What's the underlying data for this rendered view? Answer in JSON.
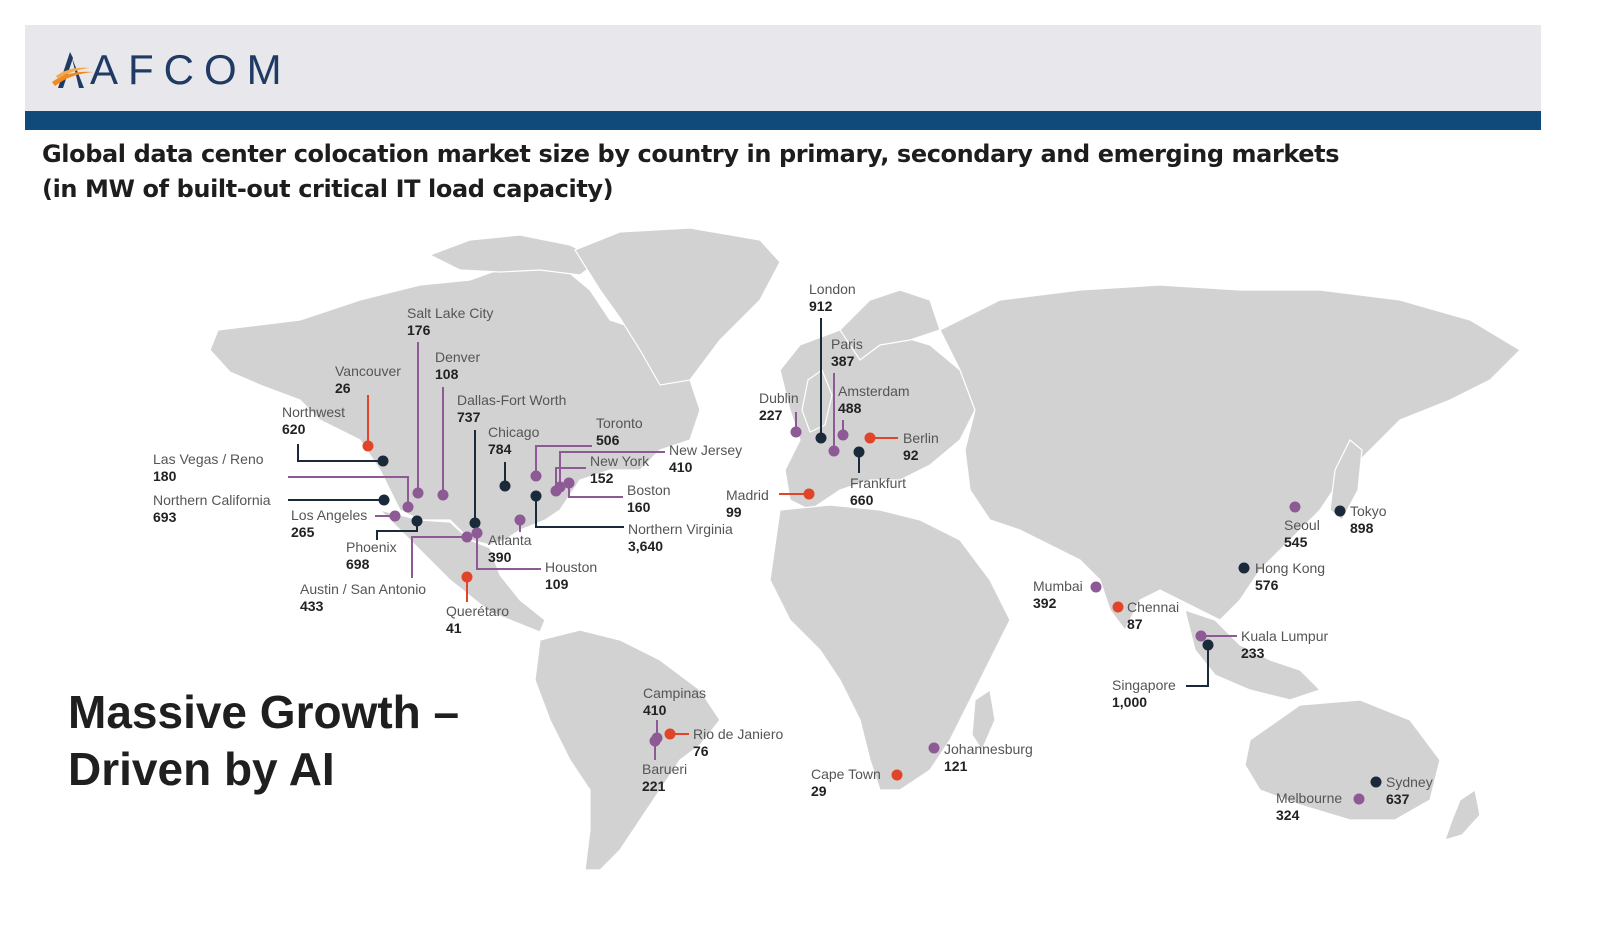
{
  "logo": {
    "text": "AFCOM"
  },
  "title": {
    "line1": "Global data center colocation market size by country in primary, secondary and emerging markets",
    "line2": "(in MW of built-out critical IT load capacity)"
  },
  "headline": {
    "line1": "Massive Growth –",
    "line2": "Driven by AI"
  },
  "colors": {
    "primary": "#1b2a3a",
    "secondary": "#8e5a96",
    "emerging": "#e0452a",
    "header_bar": "#0f4a7a",
    "land": "#d2d2d2"
  },
  "markets": [
    {
      "name": "Salt Lake City",
      "value": "176",
      "type": "secondary"
    },
    {
      "name": "Denver",
      "value": "108",
      "type": "secondary"
    },
    {
      "name": "Vancouver",
      "value": "26",
      "type": "emerging"
    },
    {
      "name": "Dallas-Fort Worth",
      "value": "737",
      "type": "primary"
    },
    {
      "name": "Northwest",
      "value": "620",
      "type": "primary"
    },
    {
      "name": "Chicago",
      "value": "784",
      "type": "primary"
    },
    {
      "name": "Toronto",
      "value": "506",
      "type": "secondary"
    },
    {
      "name": "New Jersey",
      "value": "410",
      "type": "secondary"
    },
    {
      "name": "New York",
      "value": "152",
      "type": "secondary"
    },
    {
      "name": "Las Vegas / Reno",
      "value": "180",
      "type": "secondary"
    },
    {
      "name": "Boston",
      "value": "160",
      "type": "secondary"
    },
    {
      "name": "Northern California",
      "value": "693",
      "type": "primary"
    },
    {
      "name": "Los Angeles",
      "value": "265",
      "type": "secondary"
    },
    {
      "name": "Northern Virginia",
      "value": "3,640",
      "type": "primary"
    },
    {
      "name": "Atlanta",
      "value": "390",
      "type": "secondary"
    },
    {
      "name": "Phoenix",
      "value": "698",
      "type": "primary"
    },
    {
      "name": "Houston",
      "value": "109",
      "type": "secondary"
    },
    {
      "name": "Austin / San Antonio",
      "value": "433",
      "type": "secondary"
    },
    {
      "name": "Querétaro",
      "value": "41",
      "type": "emerging"
    },
    {
      "name": "London",
      "value": "912",
      "type": "primary"
    },
    {
      "name": "Paris",
      "value": "387",
      "type": "secondary"
    },
    {
      "name": "Dublin",
      "value": "227",
      "type": "secondary"
    },
    {
      "name": "Amsterdam",
      "value": "488",
      "type": "secondary"
    },
    {
      "name": "Berlin",
      "value": "92",
      "type": "emerging"
    },
    {
      "name": "Frankfurt",
      "value": "660",
      "type": "primary"
    },
    {
      "name": "Madrid",
      "value": "99",
      "type": "emerging"
    },
    {
      "name": "Tokyo",
      "value": "898",
      "type": "primary"
    },
    {
      "name": "Seoul",
      "value": "545",
      "type": "secondary"
    },
    {
      "name": "Hong Kong",
      "value": "576",
      "type": "primary"
    },
    {
      "name": "Mumbai",
      "value": "392",
      "type": "secondary"
    },
    {
      "name": "Chennai",
      "value": "87",
      "type": "emerging"
    },
    {
      "name": "Kuala Lumpur",
      "value": "233",
      "type": "secondary"
    },
    {
      "name": "Singapore",
      "value": "1,000",
      "type": "primary"
    },
    {
      "name": "Campinas",
      "value": "410",
      "type": "secondary"
    },
    {
      "name": "Rio de Janiero",
      "value": "76",
      "type": "emerging"
    },
    {
      "name": "Barueri",
      "value": "221",
      "type": "secondary"
    },
    {
      "name": "Johannesburg",
      "value": "121",
      "type": "secondary"
    },
    {
      "name": "Cape Town",
      "value": "29",
      "type": "emerging"
    },
    {
      "name": "Sydney",
      "value": "637",
      "type": "primary"
    },
    {
      "name": "Melbourne",
      "value": "324",
      "type": "secondary"
    }
  ]
}
